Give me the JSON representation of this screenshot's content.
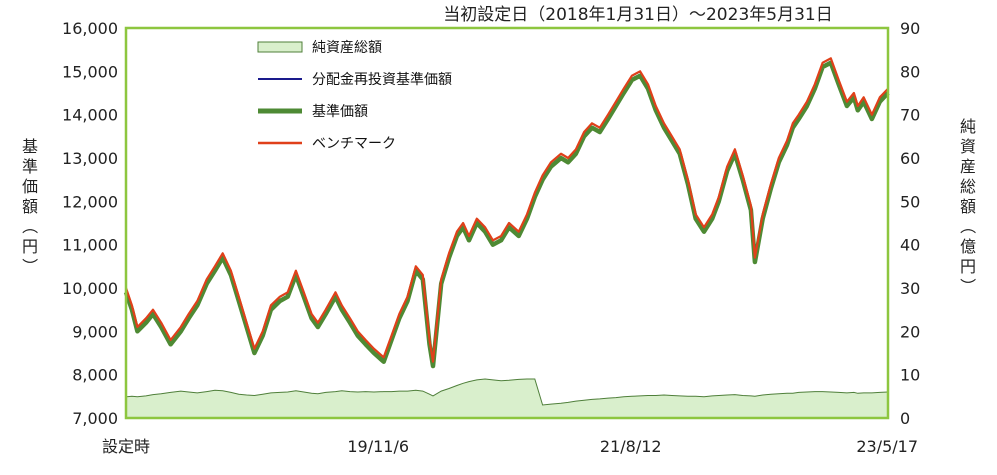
{
  "chart_data": {
    "type": "line",
    "title": "当初設定日（2018年1月31日）～2023年5月31日",
    "ylabel_left": "基準価額（円）",
    "ylabel_right": "純資産総額（億円）",
    "ylim_left": [
      7000,
      16000
    ],
    "yticks_left": [
      "7,000",
      "8,000",
      "9,000",
      "10,000",
      "11,000",
      "12,000",
      "13,000",
      "14,000",
      "15,000",
      "16,000"
    ],
    "ylim_right": [
      0,
      90
    ],
    "yticks_right": [
      "0",
      "10",
      "20",
      "30",
      "40",
      "50",
      "60",
      "70",
      "80",
      "90"
    ],
    "xlim": [
      "2018-01-31",
      "2023-05-31"
    ],
    "xticks": [
      {
        "date": "2018-01-31",
        "label": "設定時"
      },
      {
        "date": "2019-11-06",
        "label": "19/11/6"
      },
      {
        "date": "2021-08-12",
        "label": "21/8/12"
      },
      {
        "date": "2023-05-17",
        "label": "23/5/17"
      }
    ],
    "grid": false,
    "legend_position": "top-left",
    "colors": {
      "plot_border": "#8dc63f",
      "net_assets_fill": "#d9efcc",
      "net_assets_line": "#4f7f3a",
      "adjusted_nav": "#1a1a8c",
      "nav": "#4e8a34",
      "benchmark": "#e0401a"
    },
    "legend": [
      {
        "key": "net_assets",
        "label": "純資産総額"
      },
      {
        "key": "adjusted_nav",
        "label": "分配金再投資基準価額"
      },
      {
        "key": "nav",
        "label": "基準価額"
      },
      {
        "key": "benchmark",
        "label": "ベンチマーク"
      }
    ],
    "x": [
      "2018-01-31",
      "2018-02-15",
      "2018-03-01",
      "2018-03-23",
      "2018-04-10",
      "2018-05-01",
      "2018-05-25",
      "2018-06-20",
      "2018-07-10",
      "2018-08-01",
      "2018-08-25",
      "2018-09-15",
      "2018-10-05",
      "2018-10-26",
      "2018-11-15",
      "2018-12-05",
      "2018-12-25",
      "2019-01-15",
      "2019-02-05",
      "2019-02-28",
      "2019-03-20",
      "2019-04-10",
      "2019-04-30",
      "2019-05-20",
      "2019-06-05",
      "2019-06-25",
      "2019-07-20",
      "2019-08-05",
      "2019-08-26",
      "2019-09-15",
      "2019-10-05",
      "2019-10-26",
      "2019-11-20",
      "2019-12-10",
      "2019-12-30",
      "2020-01-20",
      "2020-02-10",
      "2020-02-28",
      "2020-03-16",
      "2020-03-25",
      "2020-04-15",
      "2020-05-05",
      "2020-05-25",
      "2020-06-10",
      "2020-06-25",
      "2020-07-15",
      "2020-08-05",
      "2020-08-25",
      "2020-09-15",
      "2020-10-05",
      "2020-10-30",
      "2020-11-20",
      "2020-12-10",
      "2020-12-30",
      "2021-01-20",
      "2021-02-15",
      "2021-03-05",
      "2021-03-25",
      "2021-04-15",
      "2021-05-05",
      "2021-05-25",
      "2021-06-15",
      "2021-07-05",
      "2021-07-25",
      "2021-08-15",
      "2021-09-05",
      "2021-09-25",
      "2021-10-15",
      "2021-11-05",
      "2021-11-25",
      "2021-12-15",
      "2022-01-05",
      "2022-01-25",
      "2022-02-15",
      "2022-03-08",
      "2022-03-25",
      "2022-04-15",
      "2022-05-05",
      "2022-05-25",
      "2022-06-15",
      "2022-06-25",
      "2022-07-15",
      "2022-08-05",
      "2022-08-25",
      "2022-09-15",
      "2022-09-30",
      "2022-10-15",
      "2022-11-05",
      "2022-11-25",
      "2022-12-15",
      "2023-01-05",
      "2023-01-25",
      "2023-02-15",
      "2023-03-05",
      "2023-03-15",
      "2023-03-30",
      "2023-04-20",
      "2023-05-10",
      "2023-05-31"
    ],
    "series": [
      {
        "key": "benchmark",
        "name": "ベンチマーク",
        "axis": "left",
        "values": [
          10000,
          9600,
          9100,
          9300,
          9500,
          9200,
          8800,
          9100,
          9400,
          9700,
          10200,
          10500,
          10800,
          10400,
          9800,
          9200,
          8600,
          9000,
          9600,
          9800,
          9900,
          10400,
          9900,
          9400,
          9200,
          9500,
          9900,
          9600,
          9300,
          9000,
          8800,
          8600,
          8400,
          8900,
          9400,
          9800,
          10500,
          10300,
          8800,
          8300,
          10200,
          10800,
          11300,
          11500,
          11200,
          11600,
          11400,
          11100,
          11200,
          11500,
          11300,
          11700,
          12200,
          12600,
          12900,
          13100,
          13000,
          13200,
          13600,
          13800,
          13700,
          14000,
          14300,
          14600,
          14900,
          15000,
          14700,
          14200,
          13800,
          13500,
          13200,
          12500,
          11700,
          11400,
          11700,
          12100,
          12800,
          13200,
          12600,
          11900,
          10700,
          11700,
          12400,
          13000,
          13400,
          13800,
          14000,
          14300,
          14700,
          15200,
          15300,
          14800,
          14300,
          14500,
          14200,
          14400,
          14000,
          14400,
          14600
        ]
      },
      {
        "key": "adjusted_nav",
        "name": "分配金再投資基準価額",
        "axis": "left",
        "values": [
          9990,
          9590,
          9090,
          9290,
          9490,
          9190,
          8790,
          9090,
          9390,
          9690,
          10190,
          10490,
          10790,
          10390,
          9790,
          9190,
          8590,
          8990,
          9590,
          9790,
          9890,
          10390,
          9890,
          9390,
          9190,
          9490,
          9890,
          9590,
          9290,
          8990,
          8790,
          8590,
          8390,
          8890,
          9390,
          9790,
          10490,
          10290,
          8790,
          8290,
          10190,
          10790,
          11290,
          11490,
          11190,
          11590,
          11390,
          11090,
          11190,
          11490,
          11290,
          11690,
          12190,
          12590,
          12890,
          13090,
          12990,
          13190,
          13590,
          13790,
          13690,
          13990,
          14290,
          14590,
          14890,
          14990,
          14690,
          14190,
          13790,
          13490,
          13190,
          12490,
          11690,
          11390,
          11690,
          12090,
          12790,
          13190,
          12590,
          11890,
          10690,
          11690,
          12390,
          12990,
          13390,
          13790,
          13990,
          14290,
          14690,
          15190,
          15290,
          14790,
          14290,
          14490,
          14190,
          14390,
          13990,
          14390,
          14590
        ]
      },
      {
        "key": "nav",
        "name": "基準価額",
        "axis": "left",
        "values": [
          9900,
          9500,
          9000,
          9200,
          9400,
          9100,
          8700,
          9000,
          9300,
          9600,
          10100,
          10400,
          10700,
          10300,
          9700,
          9100,
          8500,
          8900,
          9500,
          9700,
          9800,
          10300,
          9800,
          9300,
          9100,
          9400,
          9800,
          9500,
          9200,
          8900,
          8700,
          8500,
          8300,
          8800,
          9300,
          9700,
          10400,
          10200,
          8700,
          8200,
          10100,
          10700,
          11200,
          11400,
          11100,
          11500,
          11300,
          11000,
          11100,
          11400,
          11200,
          11600,
          12100,
          12500,
          12800,
          13000,
          12900,
          13100,
          13500,
          13700,
          13600,
          13900,
          14200,
          14500,
          14800,
          14900,
          14600,
          14100,
          13700,
          13400,
          13100,
          12400,
          11600,
          11300,
          11600,
          12000,
          12700,
          13100,
          12500,
          11800,
          10600,
          11600,
          12300,
          12900,
          13300,
          13700,
          13900,
          14200,
          14600,
          15100,
          15200,
          14700,
          14200,
          14400,
          14100,
          14300,
          13900,
          14300,
          14500
        ]
      },
      {
        "key": "net_assets",
        "name": "純資産総額",
        "axis": "right",
        "values": [
          4.9,
          5.0,
          4.9,
          5.1,
          5.4,
          5.6,
          5.9,
          6.2,
          6.0,
          5.8,
          6.1,
          6.4,
          6.3,
          5.9,
          5.5,
          5.3,
          5.2,
          5.5,
          5.8,
          5.9,
          6.0,
          6.3,
          6.0,
          5.7,
          5.6,
          5.9,
          6.1,
          6.3,
          6.1,
          6.0,
          6.1,
          6.0,
          6.1,
          6.1,
          6.2,
          6.2,
          6.4,
          6.2,
          5.5,
          5.1,
          6.2,
          6.8,
          7.5,
          8.0,
          8.4,
          8.8,
          9.0,
          8.8,
          8.6,
          8.7,
          8.9,
          9.0,
          9.0,
          3.0,
          3.2,
          3.4,
          3.6,
          3.9,
          4.1,
          4.3,
          4.4,
          4.6,
          4.7,
          4.9,
          5.0,
          5.1,
          5.2,
          5.2,
          5.3,
          5.2,
          5.1,
          5.0,
          5.0,
          4.9,
          5.1,
          5.2,
          5.3,
          5.4,
          5.2,
          5.1,
          5.0,
          5.3,
          5.5,
          5.6,
          5.7,
          5.7,
          5.9,
          6.0,
          6.1,
          6.1,
          6.0,
          5.9,
          5.8,
          5.9,
          5.7,
          5.8,
          5.8,
          5.9,
          6.0
        ]
      }
    ]
  }
}
